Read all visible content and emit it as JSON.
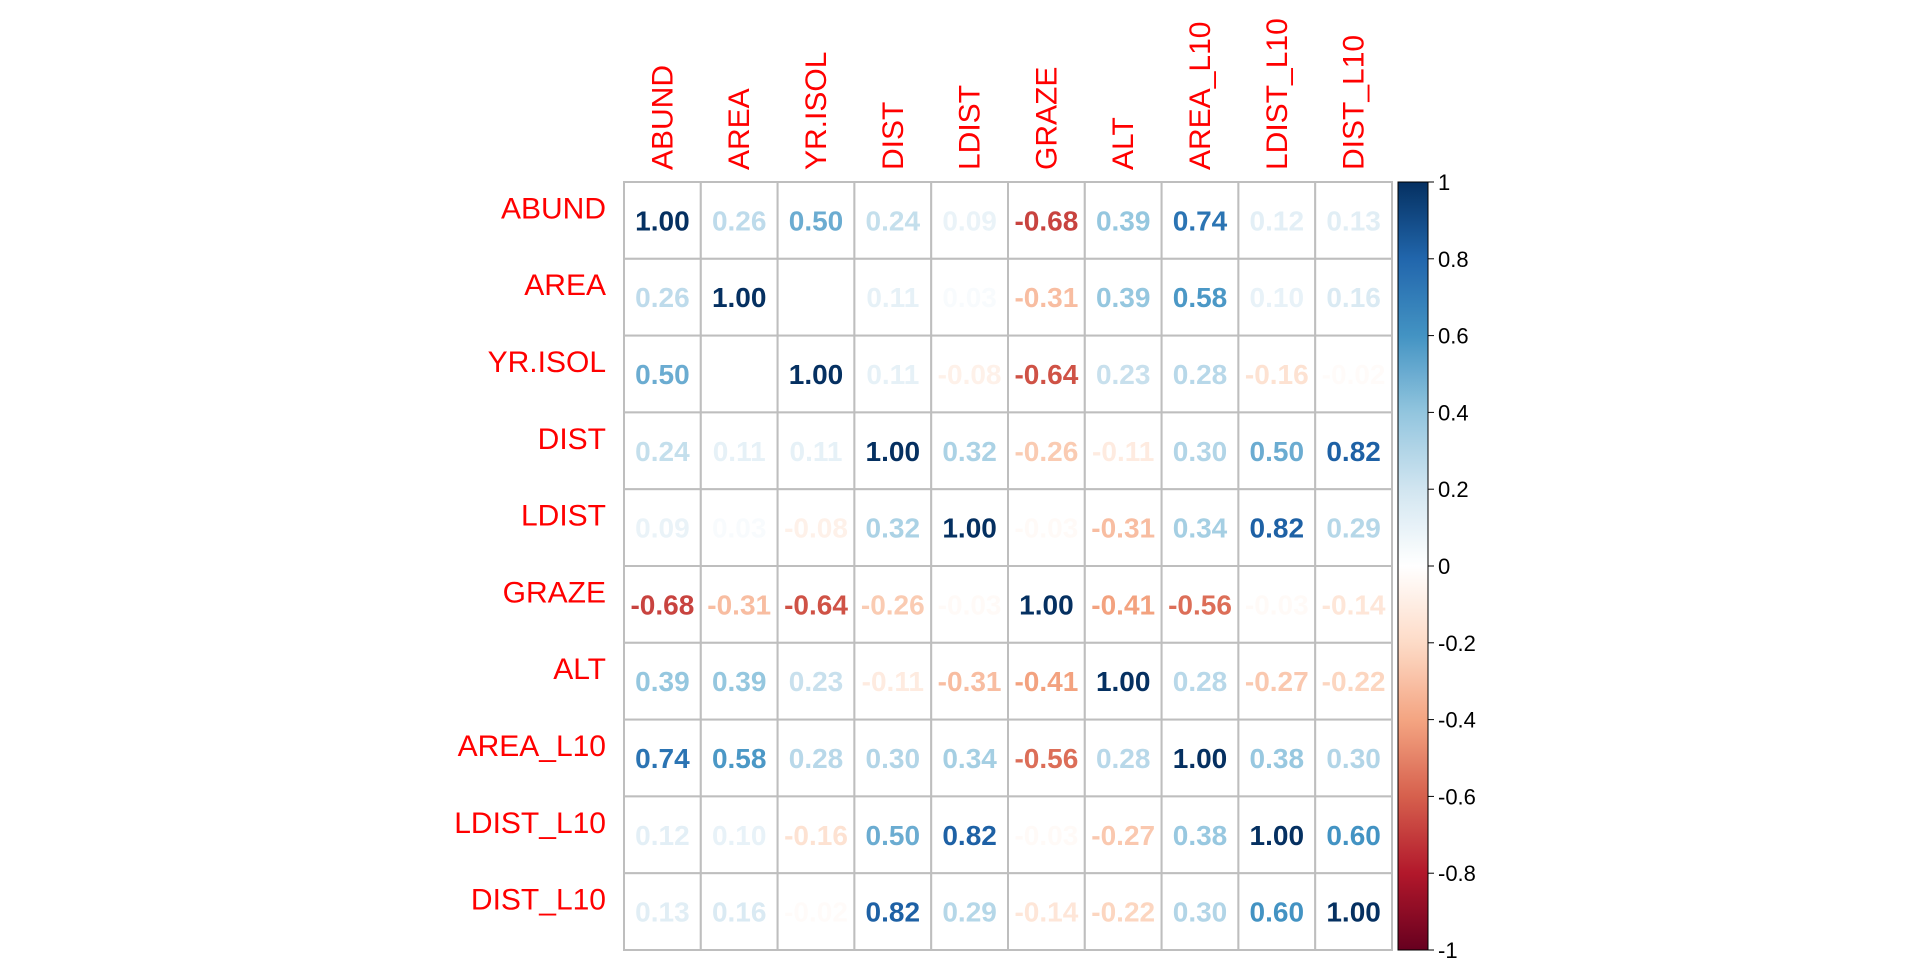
{
  "chart_data": {
    "type": "heatmap",
    "variables": [
      "ABUND",
      "AREA",
      "YR.ISOL",
      "DIST",
      "LDIST",
      "GRAZE",
      "ALT",
      "AREA_L10",
      "LDIST_L10",
      "DIST_L10"
    ],
    "values": [
      [
        1.0,
        0.26,
        0.5,
        0.24,
        0.09,
        -0.68,
        0.39,
        0.74,
        0.12,
        0.13
      ],
      [
        0.26,
        1.0,
        0.0,
        0.11,
        0.03,
        -0.31,
        0.39,
        0.58,
        0.1,
        0.16
      ],
      [
        0.5,
        0.0,
        1.0,
        0.11,
        -0.08,
        -0.64,
        0.23,
        0.28,
        -0.16,
        -0.02
      ],
      [
        0.24,
        0.11,
        0.11,
        1.0,
        0.32,
        -0.26,
        -0.11,
        0.3,
        0.5,
        0.82
      ],
      [
        0.09,
        0.03,
        -0.08,
        0.32,
        1.0,
        -0.03,
        -0.31,
        0.34,
        0.82,
        0.29
      ],
      [
        -0.68,
        -0.31,
        -0.64,
        -0.26,
        -0.03,
        1.0,
        -0.41,
        -0.56,
        -0.03,
        -0.14
      ],
      [
        0.39,
        0.39,
        0.23,
        -0.11,
        -0.31,
        -0.41,
        1.0,
        0.28,
        -0.27,
        -0.22
      ],
      [
        0.74,
        0.58,
        0.28,
        0.3,
        0.34,
        -0.56,
        0.28,
        1.0,
        0.38,
        0.3
      ],
      [
        0.12,
        0.1,
        -0.16,
        0.5,
        0.82,
        -0.03,
        -0.27,
        0.38,
        1.0,
        0.6
      ],
      [
        0.13,
        0.16,
        -0.02,
        0.82,
        0.29,
        -0.14,
        -0.22,
        0.3,
        0.6,
        1.0
      ]
    ],
    "color_range": [
      -1,
      1
    ],
    "colorbar_ticks": [
      "1",
      "0.8",
      "0.6",
      "0.4",
      "0.2",
      "0",
      "-0.2",
      "-0.4",
      "-0.6",
      "-0.8",
      "-1"
    ],
    "colorbar_tick_values": [
      1,
      0.8,
      0.6,
      0.4,
      0.2,
      0,
      -0.2,
      -0.4,
      -0.6,
      -0.8,
      -1
    ],
    "colors": {
      "label": "#ff0000",
      "grid": "#bebebe",
      "palette": [
        "#67001F",
        "#B2182B",
        "#D6604D",
        "#F4A582",
        "#FDDBC7",
        "#FFFFFF",
        "#D1E5F0",
        "#92C5DE",
        "#4393C3",
        "#2166AC",
        "#053061"
      ]
    },
    "title": "",
    "xlabel": "",
    "ylabel": ""
  }
}
